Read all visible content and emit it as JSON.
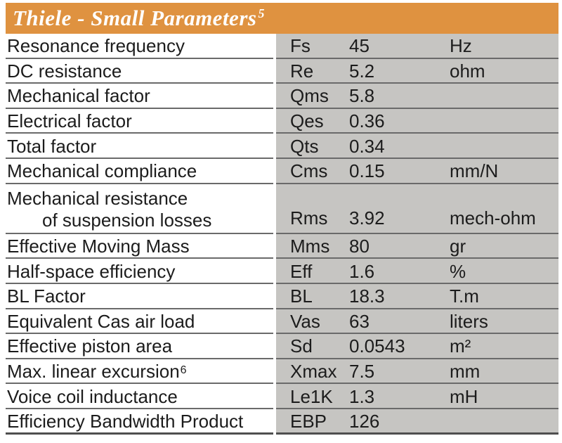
{
  "colors": {
    "header_bg": "#DF9240",
    "header_text": "#FFFFFF",
    "cell_bg": "#C6C5C2",
    "row_line": "#6A6A6A",
    "row_line_strong": "#4F4F4F",
    "text": "#1C1C1C"
  },
  "header": {
    "title": "Thiele - Small Parameters",
    "superscript": "5"
  },
  "table": {
    "columns": [
      "parameter",
      "symbol",
      "value",
      "unit"
    ],
    "rows": [
      {
        "name": "Resonance frequency",
        "name_sup": "",
        "name_line2": "",
        "symbol": "Fs",
        "value": "45",
        "unit": "Hz"
      },
      {
        "name": "DC resistance",
        "name_sup": "",
        "name_line2": "",
        "symbol": "Re",
        "value": "5.2",
        "unit": "ohm"
      },
      {
        "name": "Mechanical factor",
        "name_sup": "",
        "name_line2": "",
        "symbol": "Qms",
        "value": "5.8",
        "unit": ""
      },
      {
        "name": "Electrical factor",
        "name_sup": "",
        "name_line2": "",
        "symbol": "Qes",
        "value": "0.36",
        "unit": ""
      },
      {
        "name": "Total factor",
        "name_sup": "",
        "name_line2": "",
        "symbol": "Qts",
        "value": "0.34",
        "unit": ""
      },
      {
        "name": "Mechanical compliance",
        "name_sup": "",
        "name_line2": "",
        "symbol": "Cms",
        "value": "0.15",
        "unit": "mm/N"
      },
      {
        "name": "Mechanical resistance",
        "name_sup": "",
        "name_line2": "of suspension losses",
        "symbol": "Rms",
        "value": "3.92",
        "unit": "mech-ohm"
      },
      {
        "name": "Effective Moving Mass",
        "name_sup": "",
        "name_line2": "",
        "symbol": "Mms",
        "value": "80",
        "unit": "gr"
      },
      {
        "name": "Half-space efficiency",
        "name_sup": "",
        "name_line2": "",
        "symbol": "Eff",
        "value": "1.6",
        "unit": "%"
      },
      {
        "name": "BL Factor",
        "name_sup": "",
        "name_line2": "",
        "symbol": "BL",
        "value": "18.3",
        "unit": "T.m"
      },
      {
        "name": "Equivalent Cas air load",
        "name_sup": "",
        "name_line2": "",
        "symbol": "Vas",
        "value": "63",
        "unit": "liters"
      },
      {
        "name": "Effective piston area",
        "name_sup": "",
        "name_line2": "",
        "symbol": "Sd",
        "value": "0.0543",
        "unit": "m²"
      },
      {
        "name": "Max. linear excursion",
        "name_sup": "6",
        "name_line2": "",
        "symbol": "Xmax",
        "value": "7.5",
        "unit": "mm"
      },
      {
        "name": "Voice coil inductance",
        "name_sup": "",
        "name_line2": "",
        "symbol": "Le1K",
        "value": "1.3",
        "unit": "mH"
      },
      {
        "name": "Efficiency Bandwidth Product",
        "name_sup": "",
        "name_line2": "",
        "symbol": "EBP",
        "value": "126",
        "unit": ""
      }
    ]
  }
}
